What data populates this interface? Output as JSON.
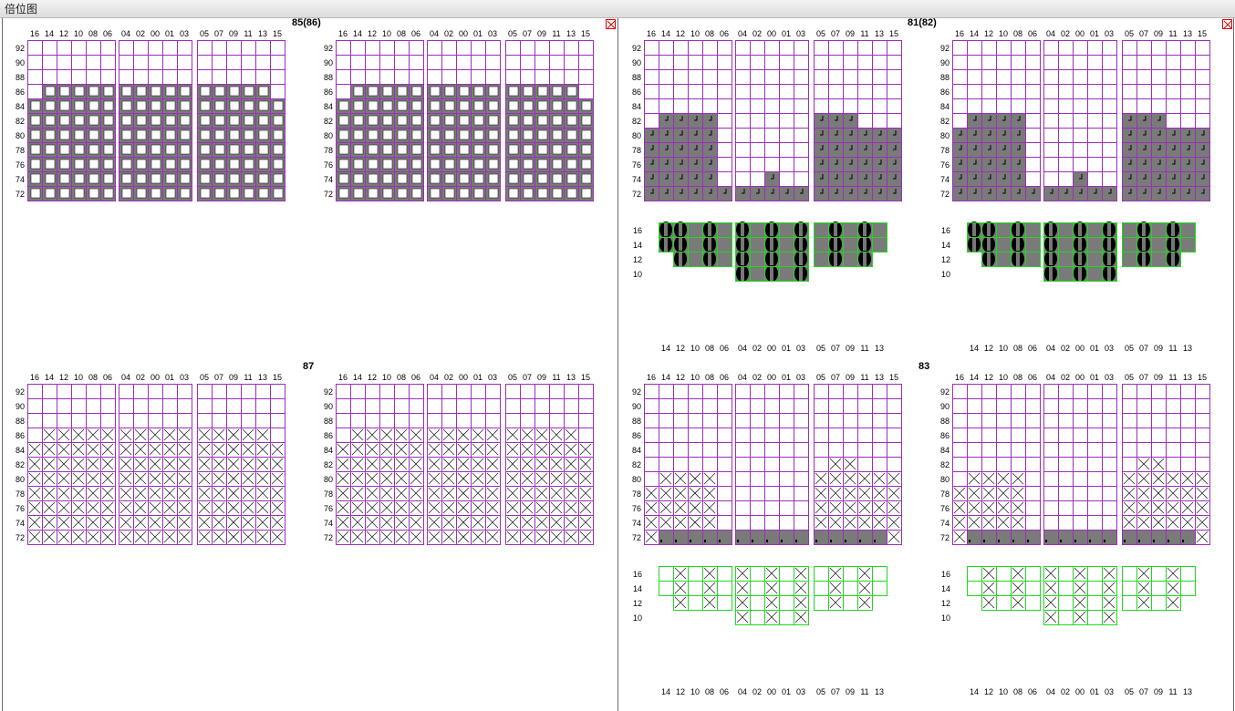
{
  "window": {
    "title": "倍位图"
  },
  "colors": {
    "deck_grid": "#9a2fb8",
    "hold_grid": "#1fd81f",
    "container": "#7a7a7a",
    "frame": "#6b6b6b",
    "close": "#dd0000"
  },
  "icons": {
    "close": "close-x-icon"
  },
  "bays": [
    {
      "title": "85(86)",
      "deck_rows": [
        "92",
        "90",
        "88",
        "86",
        "84",
        "82",
        "80",
        "78",
        "76",
        "74",
        "72"
      ],
      "deck_cols": [
        "16",
        "14",
        "12",
        "10",
        "08",
        "06",
        "04",
        "02",
        "00",
        "01",
        "03",
        "05",
        "07",
        "09",
        "11",
        "13",
        "15"
      ],
      "hold_rows": [],
      "hold_cols": [],
      "left_cells": "loaded-boxes",
      "right_cells": "loaded-boxes"
    },
    {
      "title": "81(82)",
      "deck_rows": [
        "92",
        "90",
        "88",
        "86",
        "84",
        "82",
        "80",
        "78",
        "76",
        "74",
        "72"
      ],
      "deck_cols": [
        "16",
        "14",
        "12",
        "10",
        "08",
        "06",
        "04",
        "02",
        "00",
        "01",
        "03",
        "05",
        "07",
        "09",
        "11",
        "13",
        "15"
      ],
      "hold_rows": [
        "16",
        "14",
        "12",
        "10"
      ],
      "hold_cols": [
        "14",
        "12",
        "10",
        "08",
        "06",
        "04",
        "02",
        "00",
        "01",
        "03",
        "05",
        "07",
        "09",
        "11",
        "13"
      ],
      "left_cells": "loaded-dark",
      "right_cells": "loaded-dark"
    },
    {
      "title": "87",
      "deck_rows": [
        "92",
        "90",
        "88",
        "86",
        "84",
        "82",
        "80",
        "78",
        "76",
        "74",
        "72"
      ],
      "deck_cols": [
        "16",
        "14",
        "12",
        "10",
        "08",
        "06",
        "04",
        "02",
        "00",
        "01",
        "03",
        "05",
        "07",
        "09",
        "11",
        "13",
        "15"
      ],
      "hold_rows": [],
      "hold_cols": [],
      "left_cells": "crossed",
      "right_cells": "crossed"
    },
    {
      "title": "83",
      "deck_rows": [
        "92",
        "90",
        "88",
        "86",
        "84",
        "82",
        "80",
        "78",
        "76",
        "74",
        "72"
      ],
      "deck_cols": [
        "16",
        "14",
        "12",
        "10",
        "08",
        "06",
        "04",
        "02",
        "00",
        "01",
        "03",
        "05",
        "07",
        "09",
        "11",
        "13",
        "15"
      ],
      "hold_rows": [
        "16",
        "14",
        "12",
        "10"
      ],
      "hold_cols": [
        "14",
        "12",
        "10",
        "08",
        "06",
        "04",
        "02",
        "00",
        "01",
        "03",
        "05",
        "07",
        "09",
        "11",
        "13"
      ],
      "left_cells": "crossed",
      "right_cells": "crossed"
    }
  ]
}
